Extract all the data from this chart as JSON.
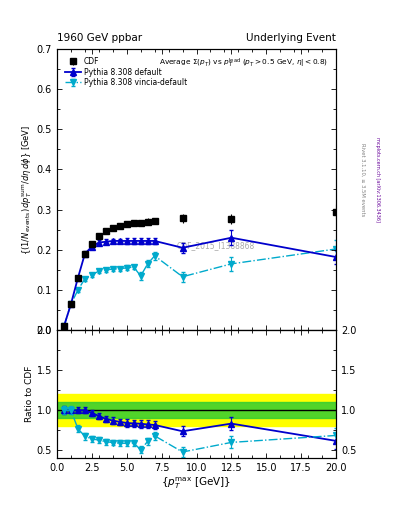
{
  "title_left": "1960 GeV ppbar",
  "title_right": "Underlying Event",
  "watermark": "CDF_2015_I1388868",
  "right_label1": "Rivet 3.1.10, ≥ 3.5M events",
  "right_label2": "mcplots.cern.ch [arXiv:1306.3436]",
  "cdf_x": [
    0.5,
    1.0,
    1.5,
    2.0,
    2.5,
    3.0,
    3.5,
    4.0,
    4.5,
    5.0,
    5.5,
    6.0,
    6.5,
    7.0,
    9.0,
    12.5,
    20.0
  ],
  "cdf_y": [
    0.01,
    0.065,
    0.13,
    0.19,
    0.215,
    0.235,
    0.247,
    0.255,
    0.26,
    0.264,
    0.266,
    0.267,
    0.27,
    0.272,
    0.278,
    0.276,
    0.295
  ],
  "cdf_yerr": [
    0.002,
    0.004,
    0.006,
    0.007,
    0.007,
    0.007,
    0.007,
    0.007,
    0.007,
    0.007,
    0.007,
    0.008,
    0.008,
    0.008,
    0.012,
    0.012,
    0.018
  ],
  "py_x": [
    0.5,
    1.0,
    1.5,
    2.0,
    2.5,
    3.0,
    3.5,
    4.0,
    4.5,
    5.0,
    5.5,
    6.0,
    6.5,
    7.0,
    9.0,
    12.5,
    20.0
  ],
  "py_y": [
    0.01,
    0.065,
    0.13,
    0.19,
    0.208,
    0.218,
    0.22,
    0.222,
    0.222,
    0.222,
    0.222,
    0.222,
    0.222,
    0.222,
    0.205,
    0.23,
    0.182
  ],
  "py_yerr": [
    0.001,
    0.003,
    0.005,
    0.006,
    0.006,
    0.006,
    0.006,
    0.006,
    0.006,
    0.007,
    0.007,
    0.007,
    0.007,
    0.008,
    0.012,
    0.018,
    0.018
  ],
  "vi_x": [
    0.5,
    1.0,
    1.5,
    2.0,
    2.5,
    3.0,
    3.5,
    4.0,
    4.5,
    5.0,
    5.5,
    6.0,
    6.5,
    7.0,
    9.0,
    12.5,
    20.0
  ],
  "vi_y": [
    0.01,
    0.065,
    0.1,
    0.128,
    0.138,
    0.147,
    0.15,
    0.152,
    0.153,
    0.155,
    0.157,
    0.135,
    0.165,
    0.185,
    0.133,
    0.165,
    0.202
  ],
  "vi_yerr": [
    0.001,
    0.003,
    0.004,
    0.005,
    0.005,
    0.005,
    0.005,
    0.005,
    0.005,
    0.006,
    0.006,
    0.009,
    0.009,
    0.01,
    0.013,
    0.018,
    0.022
  ],
  "r_py_y": [
    1.0,
    1.0,
    1.0,
    1.0,
    0.967,
    0.928,
    0.892,
    0.871,
    0.855,
    0.841,
    0.835,
    0.832,
    0.822,
    0.816,
    0.737,
    0.833,
    0.617
  ],
  "r_py_yerr": [
    0.05,
    0.04,
    0.04,
    0.04,
    0.04,
    0.04,
    0.04,
    0.04,
    0.04,
    0.045,
    0.045,
    0.05,
    0.05,
    0.055,
    0.065,
    0.085,
    0.1
  ],
  "r_vi_y": [
    1.0,
    1.0,
    0.769,
    0.674,
    0.642,
    0.626,
    0.607,
    0.596,
    0.588,
    0.587,
    0.59,
    0.506,
    0.611,
    0.68,
    0.478,
    0.598,
    0.685
  ],
  "r_vi_yerr": [
    0.05,
    0.05,
    0.045,
    0.04,
    0.038,
    0.037,
    0.036,
    0.036,
    0.036,
    0.038,
    0.038,
    0.042,
    0.042,
    0.048,
    0.058,
    0.075,
    0.09
  ],
  "ylim_main": [
    0.0,
    0.7
  ],
  "ylim_ratio": [
    0.4,
    2.0
  ],
  "xlim": [
    0.0,
    20.0
  ],
  "color_cdf": "#000000",
  "color_py": "#0000cc",
  "color_vi": "#00aacc",
  "yticks_main": [
    0.0,
    0.1,
    0.2,
    0.3,
    0.4,
    0.5,
    0.6,
    0.7
  ],
  "yticks_ratio": [
    0.5,
    1.0,
    1.5,
    2.0
  ],
  "band_yellow": [
    0.8,
    1.2
  ],
  "band_green": [
    0.9,
    1.1
  ],
  "yellow_xmax": 0.75,
  "yellow_full_xmin": 0.12
}
